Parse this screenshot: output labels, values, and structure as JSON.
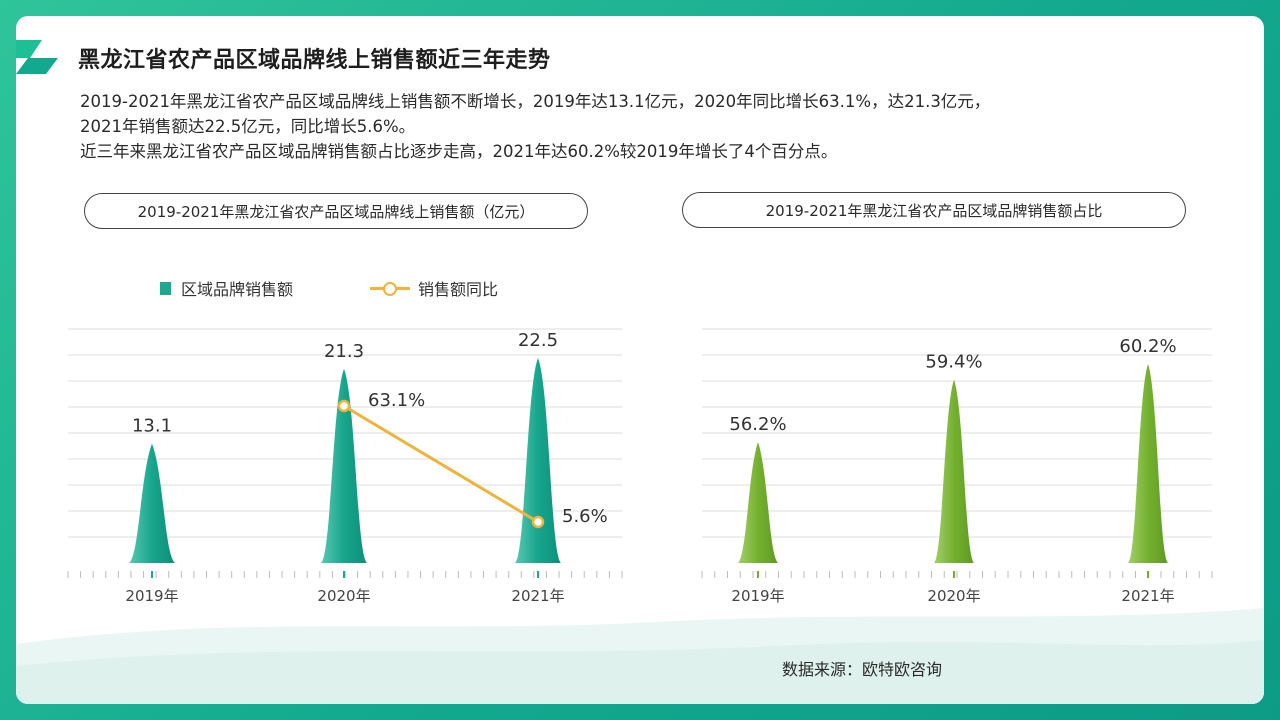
{
  "header": {
    "title": "黑龙江省农产品区域品牌线上销售额近三年走势"
  },
  "description": {
    "line1": "2019-2021年黑龙江省农产品区域品牌线上销售额不断增长，2019年达13.1亿元，2020年同比增长63.1%，达21.3亿元，",
    "line2": "2021年销售额达22.5亿元，同比增长5.6%。",
    "line3": "近三年来黑龙江省农产品区域品牌销售额占比逐步走高，2021年达60.2%较2019年增长了4个百分点。"
  },
  "legend": {
    "bar_label": "区域品牌销售额",
    "line_label": "销售额同比"
  },
  "source": "数据来源：欧特欧咨询",
  "colors": {
    "teal": "#1ea88f",
    "green": "#73b02f",
    "orange": "#f0b43c",
    "grid": "#dcdcdc",
    "frame": "#13a98f"
  },
  "chart_data": [
    {
      "type": "bar",
      "title": "2019-2021年黑龙江省农产品区域品牌线上销售额（亿元）",
      "categories": [
        "2019年",
        "2020年",
        "2021年"
      ],
      "series": [
        {
          "name": "区域品牌销售额",
          "values": [
            13.1,
            21.3,
            22.5
          ],
          "labels": [
            "13.1",
            "21.3",
            "22.5"
          ],
          "type": "bar"
        },
        {
          "name": "销售额同比",
          "x": [
            "2020年",
            "2021年"
          ],
          "values": [
            63.1,
            5.6
          ],
          "labels": [
            "63.1%",
            "5.6%"
          ],
          "type": "line"
        }
      ],
      "grid": true,
      "legend": "top-left"
    },
    {
      "type": "bar",
      "title": "2019-2021年黑龙江省农产品区域品牌销售额占比",
      "categories": [
        "2019年",
        "2020年",
        "2021年"
      ],
      "series": [
        {
          "values": [
            56.2,
            59.4,
            60.2
          ],
          "labels": [
            "56.2%",
            "59.4%",
            "60.2%"
          ]
        }
      ],
      "grid": true
    }
  ]
}
